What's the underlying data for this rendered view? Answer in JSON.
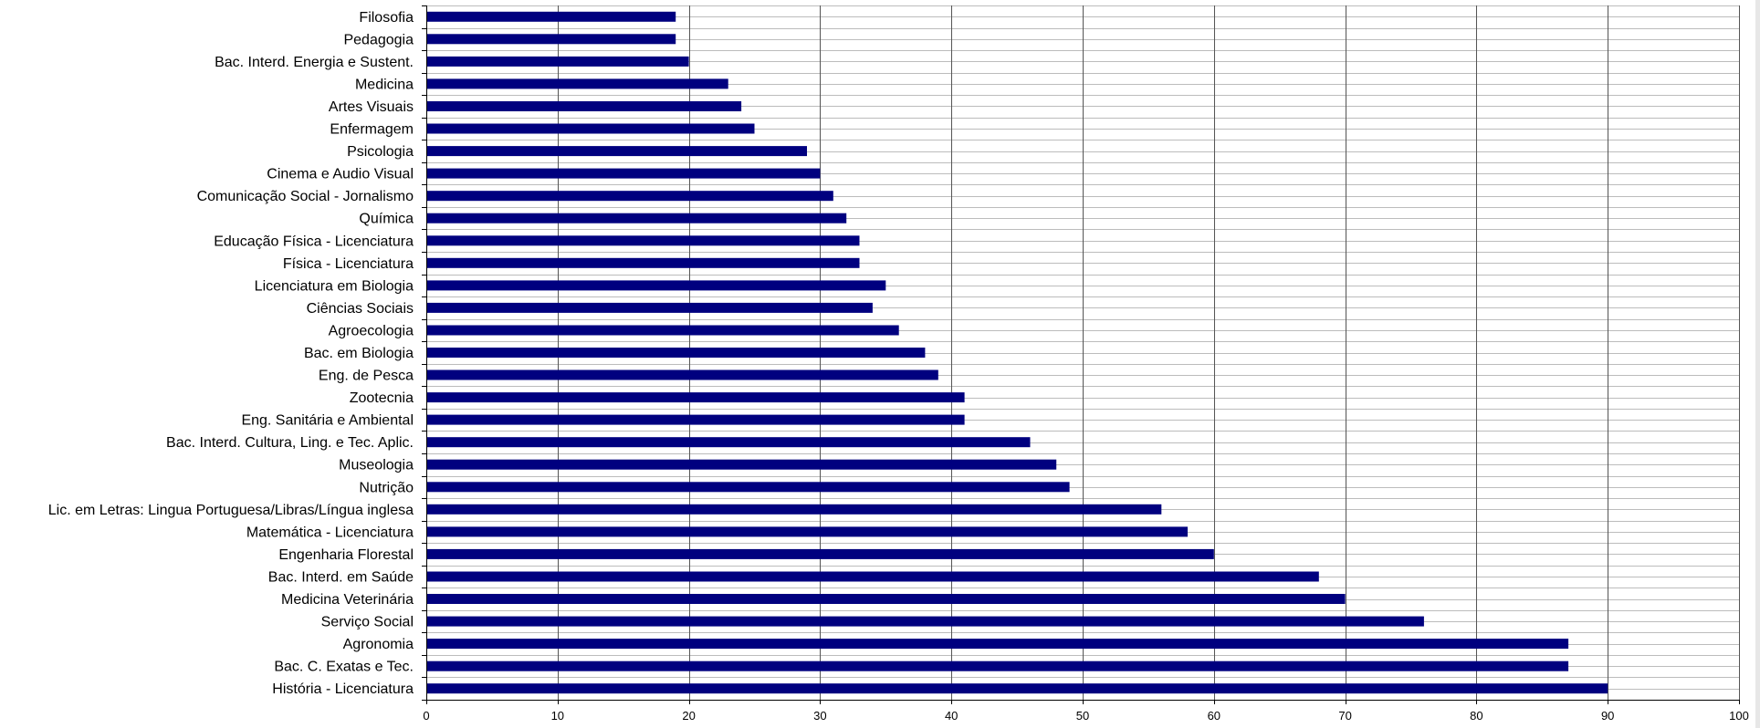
{
  "chart_data": {
    "type": "bar",
    "orientation": "horizontal",
    "categories": [
      "Filosofia",
      "Pedagogia",
      "Bac. Interd. Energia e Sustent.",
      "Medicina",
      "Artes Visuais",
      "Enfermagem",
      "Psicologia",
      "Cinema e Audio Visual",
      "Comunicação Social - Jornalismo",
      "Química",
      "Educação Física - Licenciatura",
      "Física - Licenciatura",
      "Licenciatura em Biologia",
      "Ciências Sociais",
      "Agroecologia",
      "Bac. em Biologia",
      "Eng. de Pesca",
      "Zootecnia",
      "Eng. Sanitária e Ambiental",
      "Bac. Interd. Cultura, Ling. e Tec. Aplic.",
      "Museologia",
      "Nutrição",
      "Lic. em Letras: Lingua Portuguesa/Libras/Língua inglesa",
      "Matemática - Licenciatura",
      "Engenharia Florestal",
      "Bac. Interd. em Saúde",
      "Medicina Veterinária",
      "Serviço Social",
      "Agronomia",
      "Bac. C. Exatas e Tec.",
      "História - Licenciatura"
    ],
    "values": [
      19,
      19,
      20,
      23,
      24,
      25,
      29,
      30,
      31,
      32,
      33,
      33,
      35,
      34,
      36,
      38,
      39,
      41,
      41,
      46,
      48,
      49,
      56,
      58,
      60,
      68,
      70,
      76,
      87,
      87,
      90
    ],
    "xlim": [
      0,
      100
    ],
    "xticks": [
      0,
      10,
      20,
      30,
      40,
      50,
      60,
      70,
      80,
      90,
      100
    ],
    "title": "",
    "xlabel": "",
    "ylabel": "",
    "major_grid": "vertical",
    "minor_grid": "horizontal",
    "legend": "none",
    "colors": {
      "bar": "#00007f",
      "major_grid": "#555555",
      "minor_grid": "#bcbcbc",
      "axis": "#000000"
    }
  }
}
